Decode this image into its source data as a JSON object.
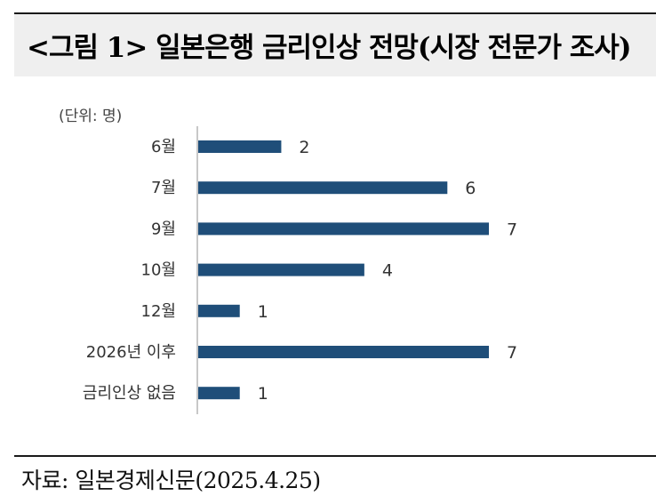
{
  "title": "<그림 1> 일본은행 금리인상 전망(시장 전문가 조사)",
  "unit_label": "(단위: 명)",
  "source": "자료: 일본경제신문(2025.4.25)",
  "colors": {
    "bar": "#1f4e79",
    "header_bg": "#efefef"
  },
  "chart_data": {
    "type": "bar",
    "orientation": "horizontal",
    "categories": [
      "6월",
      "7월",
      "9월",
      "10월",
      "12월",
      "2026년 이후",
      "금리인상 없음"
    ],
    "values": [
      2,
      6,
      7,
      4,
      1,
      7,
      1
    ],
    "data_labels": [
      "2",
      "6",
      "7",
      "4",
      "1",
      "7",
      "1"
    ],
    "unit": "(단위: 명)",
    "xlim": [
      0,
      7
    ],
    "grid": false,
    "legend": "none"
  }
}
